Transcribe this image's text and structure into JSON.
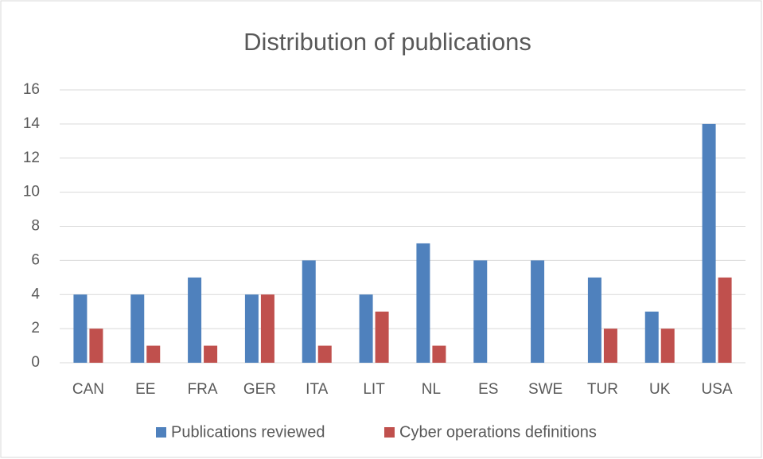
{
  "chart_data": {
    "type": "bar",
    "title": "Distribution of publications",
    "categories": [
      "CAN",
      "EE",
      "FRA",
      "GER",
      "ITA",
      "LIT",
      "NL",
      "ES",
      "SWE",
      "TUR",
      "UK",
      "USA"
    ],
    "series": [
      {
        "name": "Publications reviewed",
        "color": "#4f81bd",
        "values": [
          4,
          4,
          5,
          4,
          6,
          4,
          7,
          6,
          6,
          5,
          3,
          14
        ]
      },
      {
        "name": "Cyber operations definitions",
        "color": "#c0504d",
        "values": [
          2,
          1,
          1,
          4,
          1,
          3,
          1,
          0,
          0,
          2,
          2,
          5
        ]
      }
    ],
    "ylim": [
      0,
      16
    ],
    "yticks": [
      0,
      2,
      4,
      6,
      8,
      10,
      12,
      14,
      16
    ],
    "grid": true,
    "legend": "bottom"
  }
}
